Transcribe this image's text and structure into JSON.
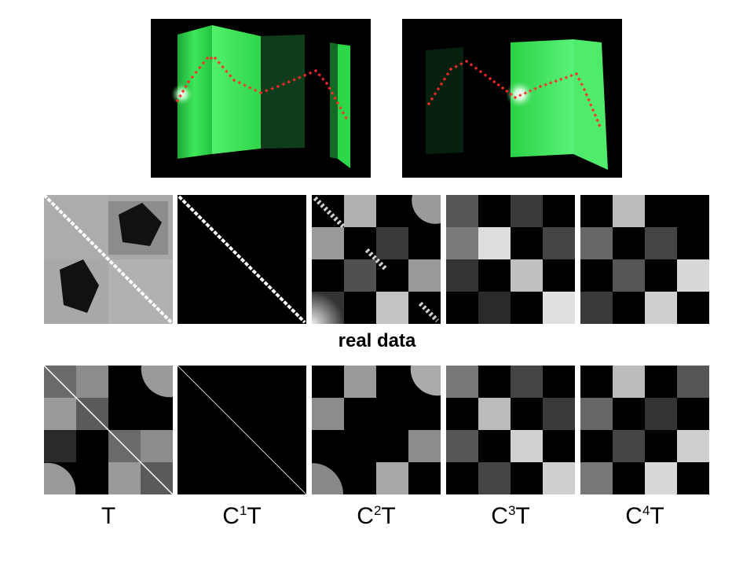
{
  "figure": {
    "real_data_label": "real data",
    "columns": [
      {
        "base": "T",
        "sup": "",
        "suffix": ""
      },
      {
        "base": "C",
        "sup": "1",
        "suffix": "T"
      },
      {
        "base": "C",
        "sup": "2",
        "suffix": "T"
      },
      {
        "base": "C",
        "sup": "3",
        "suffix": "T"
      },
      {
        "base": "C",
        "sup": "4",
        "suffix": "T"
      }
    ],
    "colors": {
      "photo_background": "#000000",
      "projected_light": "#22d43a",
      "marker": "#ff2a2a"
    }
  }
}
